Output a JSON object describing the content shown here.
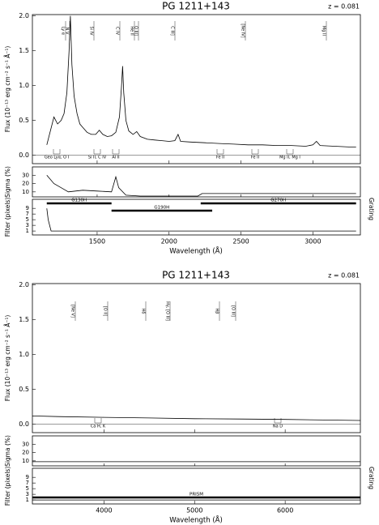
{
  "chart_data": [
    {
      "type": "line",
      "title": "PG 1211+143",
      "redshift_label": "z = 0.081",
      "ylabel": "Flux (10⁻¹³ erg cm⁻² s⁻¹ Å⁻¹)",
      "xlabel": "Wavelength (Å)",
      "xlim": [
        1050,
        3330
      ],
      "xticks": [
        1500,
        2000,
        2500,
        3000
      ],
      "ylim": [
        -0.12,
        2.02
      ],
      "yticks": [
        {
          "value": 0,
          "label": "0.0"
        },
        {
          "value": 0.5,
          "label": "0.5"
        },
        {
          "value": 1,
          "label": "1.0"
        },
        {
          "value": 1.5,
          "label": "1.5"
        },
        {
          "value": 2,
          "label": "2.0"
        }
      ],
      "color": "#000000",
      "x": [
        1150,
        1175,
        1200,
        1225,
        1250,
        1270,
        1290,
        1305,
        1314,
        1325,
        1340,
        1360,
        1380,
        1400,
        1430,
        1460,
        1490,
        1515,
        1540,
        1570,
        1600,
        1630,
        1655,
        1670,
        1677,
        1685,
        1700,
        1720,
        1750,
        1775,
        1800,
        1850,
        1900,
        1950,
        2000,
        2040,
        2063,
        2080,
        2150,
        2250,
        2350,
        2450,
        2550,
        2650,
        2750,
        2850,
        2950,
        3000,
        3025,
        3050,
        3150,
        3250,
        3300
      ],
      "values": [
        0.15,
        0.35,
        0.55,
        0.45,
        0.5,
        0.6,
        0.9,
        1.5,
        2.0,
        1.3,
        0.85,
        0.6,
        0.45,
        0.4,
        0.33,
        0.3,
        0.3,
        0.36,
        0.3,
        0.27,
        0.28,
        0.33,
        0.55,
        1.0,
        1.28,
        0.9,
        0.5,
        0.35,
        0.3,
        0.34,
        0.27,
        0.23,
        0.22,
        0.21,
        0.2,
        0.21,
        0.3,
        0.2,
        0.19,
        0.18,
        0.17,
        0.16,
        0.15,
        0.15,
        0.14,
        0.14,
        0.13,
        0.15,
        0.2,
        0.14,
        0.13,
        0.12,
        0.12
      ],
      "emission_lines": [
        "Ly α",
        "N V",
        "Si IV",
        "C IV",
        "He II",
        "O III]",
        "C III]",
        "[Ne IV]",
        "Mg II"
      ],
      "absorption_lines": [
        "Geo Lyα, O I",
        "Si II, C IV",
        "Al II",
        "Fe II",
        "Fe II",
        "Mg II, Mg I"
      ],
      "sigma": {
        "ylabel": "Sigma (%)",
        "ylim": [
          4,
          40
        ],
        "yticks": [
          10,
          20,
          30
        ],
        "x": [
          1150,
          1200,
          1250,
          1300,
          1400,
          1500,
          1600,
          1630,
          1650,
          1700,
          1800,
          2000,
          2200,
          2230,
          2500,
          3000,
          3300
        ],
        "values": [
          30,
          20,
          15,
          10,
          12,
          11,
          10,
          28,
          15,
          6,
          5,
          5,
          5,
          8,
          8,
          8,
          8
        ]
      },
      "filter": {
        "ylabel": "Filter (pixels)",
        "right_label": "Grating",
        "ylim": [
          -0.4,
          12.2
        ],
        "yticks": [
          1,
          3,
          5,
          7,
          9
        ],
        "x": [
          1150,
          1160,
          1170,
          1180,
          3300
        ],
        "values": [
          9,
          5,
          3,
          1,
          1
        ],
        "gratings": [
          {
            "name": "G130H",
            "range": [
              1150,
              1600
            ]
          },
          {
            "name": "G190H",
            "range": [
              1600,
              2300
            ]
          },
          {
            "name": "G270H",
            "range": [
              2220,
              3300
            ]
          }
        ]
      }
    },
    {
      "type": "line",
      "title": "PG 1211+143",
      "redshift_label": "z = 0.081",
      "ylabel": "Flux (10⁻¹³ erg cm⁻² s⁻¹ Å⁻¹)",
      "xlabel": "Wavelength (Å)",
      "xlim": [
        3210,
        6830
      ],
      "xticks": [
        4000,
        5000,
        6000
      ],
      "ylim": [
        -0.12,
        2.02
      ],
      "yticks": [
        {
          "value": 0,
          "label": "0.0"
        },
        {
          "value": 0.5,
          "label": "0.5"
        },
        {
          "value": 1,
          "label": "1.0"
        },
        {
          "value": 1.5,
          "label": "1.5"
        },
        {
          "value": 2,
          "label": "2.0"
        }
      ],
      "color": "#000000",
      "x": [
        3210,
        3500,
        4000,
        4500,
        5000,
        5500,
        6000,
        6500,
        6830
      ],
      "values": [
        0.12,
        0.11,
        0.1,
        0.09,
        0.08,
        0.075,
        0.07,
        0.06,
        0.055
      ],
      "emission_lines": [
        "[Ne V]",
        "[O II]",
        "Hδ",
        "Hγ, [O III]",
        "Hβ",
        "[O III]"
      ],
      "absorption_lines": [
        "Ca H, K",
        "Na D"
      ],
      "sigma": {
        "ylabel": "Sigma (%)",
        "ylim": [
          4,
          40
        ],
        "yticks": [
          10,
          20,
          30
        ],
        "x": [
          3210,
          4000,
          5000,
          6000,
          6830
        ],
        "values": [
          9,
          9,
          9,
          9,
          9
        ]
      },
      "filter": {
        "ylabel": "Filter (pixels)",
        "right_label": "Grating",
        "ylim": [
          -0.4,
          12.2
        ],
        "yticks": [
          1,
          3,
          5,
          7,
          9
        ],
        "x": [
          3210,
          6830
        ],
        "values": [
          1,
          1
        ],
        "gratings": [
          {
            "name": "PRISM",
            "range": [
              3210,
              6830
            ]
          }
        ]
      }
    }
  ]
}
